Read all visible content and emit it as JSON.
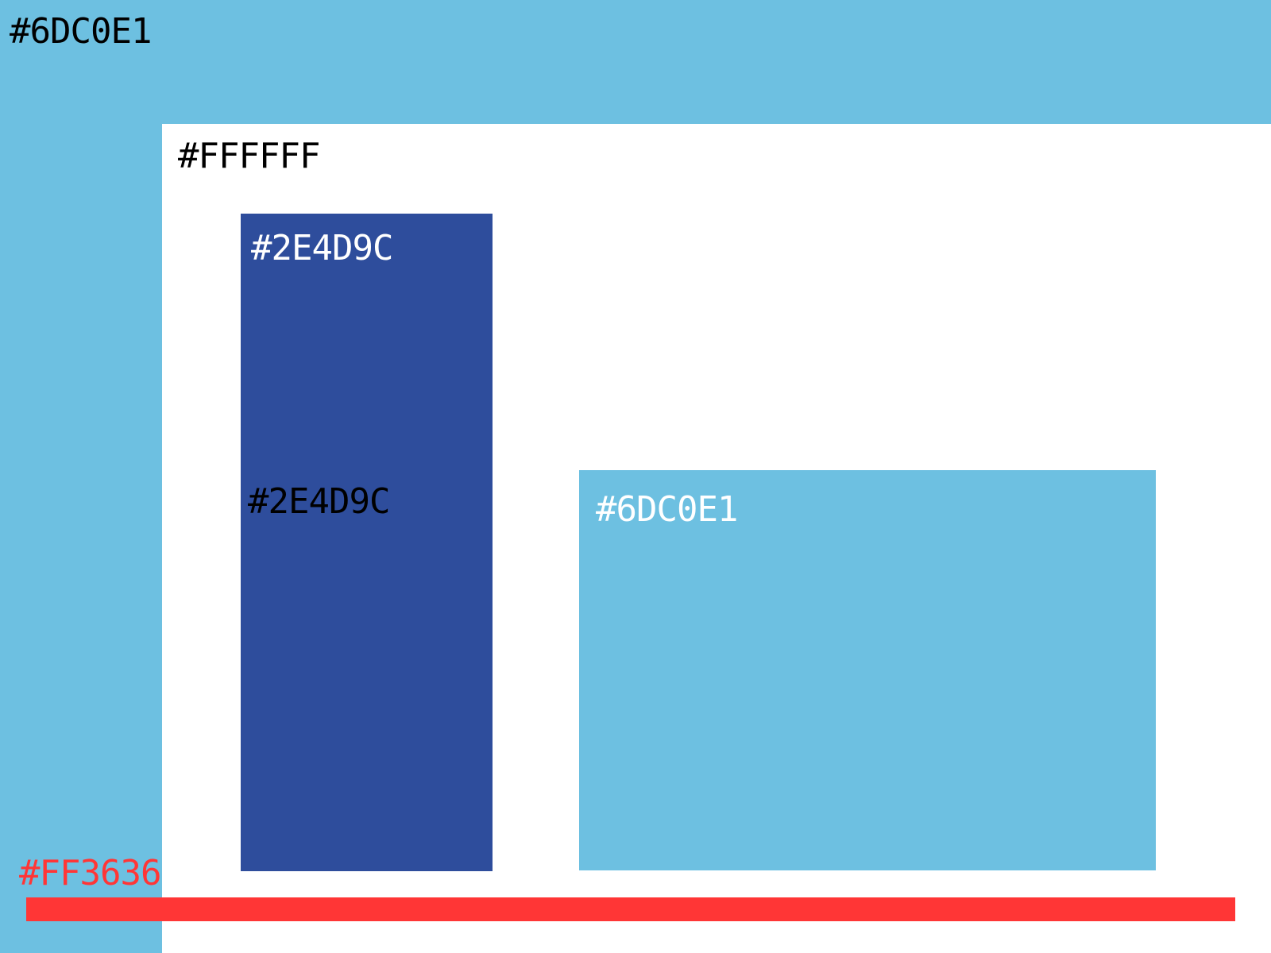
{
  "background": {
    "color": "#6DC0E1",
    "label": "#6DC0E1",
    "label_color": "#000000"
  },
  "white_panel": {
    "color": "#FFFFFF",
    "label": "#FFFFFF",
    "label_color": "#000000"
  },
  "dark_bar": {
    "color": "#2E4D9C",
    "label_top": "#2E4D9C",
    "label_top_color": "#FFFFFF",
    "label_middle": "#2E4D9C",
    "label_middle_color": "#000000"
  },
  "light_box": {
    "color": "#6DC0E1",
    "label": "#6DC0E1",
    "label_color": "#FFFFFF"
  },
  "red_line": {
    "color": "#FF3636",
    "label": "#FF3636",
    "label_color": "#FF3636"
  }
}
